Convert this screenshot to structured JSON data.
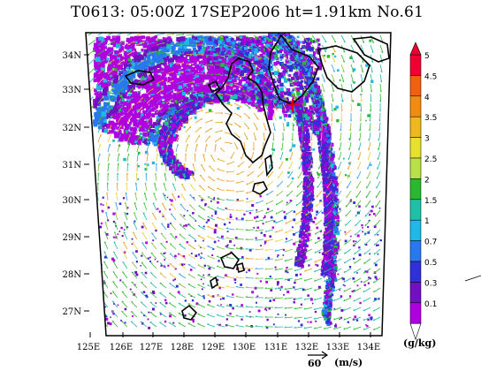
{
  "title": "T0613:  05:00Z  17SEP2006    ht=1.91km  No.61",
  "map": {
    "lon_ticks": [
      "125E",
      "126E",
      "127E",
      "128E",
      "129E",
      "130E",
      "131E",
      "132E",
      "133E",
      "134E"
    ],
    "lat_ticks": [
      "34N",
      "33N",
      "32N",
      "31N",
      "30N",
      "29N",
      "28N",
      "27N"
    ],
    "lon_range": [
      125,
      134.8
    ],
    "lat_range": [
      26.3,
      34.4
    ]
  },
  "colorbar": {
    "labels": [
      "5",
      "4.5",
      "4",
      "3.5",
      "3",
      "2.5",
      "2",
      "1.5",
      "1",
      "0.7",
      "0.5",
      "0.3",
      "0.1"
    ],
    "colors": [
      "#ee0033",
      "#f06010",
      "#f08c10",
      "#f0b820",
      "#e8e030",
      "#b8e048",
      "#2ab830",
      "#20c0a8",
      "#20b8e8",
      "#2878f0",
      "#3030d8",
      "#7010c0",
      "#b000e0"
    ],
    "unit": "(g/kg)"
  },
  "vector_key": {
    "value": "60",
    "unit": "(m/s)"
  },
  "storm": {
    "center_lon": 129.5,
    "center_lat": 30.8
  }
}
